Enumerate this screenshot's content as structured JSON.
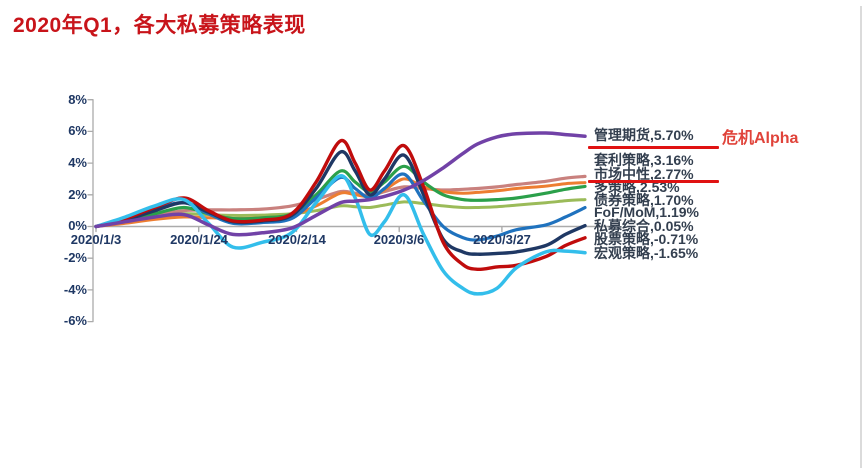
{
  "page": {
    "title": "2020年Q1，各大私募策略表现"
  },
  "annotation": {
    "text": "危机Alpha"
  },
  "colors": {
    "title_red": "#C8141A",
    "annotation_red": "#E0433A",
    "underline_red": "#E01212",
    "axis_text": "#1F3864",
    "legend_text": "#333F4F",
    "axis_line": "#ABABAB",
    "page_border": "#DBDBDB"
  },
  "legend": {
    "entries": [
      {
        "text": "管理期货,5.70%",
        "underlined": true
      },
      {
        "text": "套利策略,3.16%",
        "underlined": false
      },
      {
        "text": "市场中性,2.77%",
        "underlined": true
      },
      {
        "text": "多策略,2.53%",
        "underlined": false
      },
      {
        "text": "债券策略,1.70%",
        "underlined": false
      },
      {
        "text": "FoF/MoM,1.19%",
        "underlined": false
      },
      {
        "text": "私募综合,0.05%",
        "underlined": false
      },
      {
        "text": "股票策略,-0.71%",
        "underlined": false
      },
      {
        "text": "宏观策略,-1.65%",
        "underlined": false
      }
    ]
  },
  "chart_data": {
    "type": "line",
    "title": "2020年Q1，各大私募策略表现",
    "xlabel": "",
    "ylabel": "",
    "ylim": [
      -6,
      8
    ],
    "grid": "zero-line-only",
    "legend_position": "right",
    "x_tick_labels": [
      "2020/1/3",
      "2020/1/24",
      "2020/2/14",
      "2020/3/6",
      "2020/3/27"
    ],
    "x_tick_pos": [
      0,
      0.21,
      0.41,
      0.62,
      0.83
    ],
    "y_ticks": [
      "8%",
      "6%",
      "4%",
      "2%",
      "0%",
      "-2%",
      "-4%",
      "-6%"
    ],
    "y_tick_values": [
      8,
      6,
      4,
      2,
      0,
      -2,
      -4,
      -6
    ],
    "x_unit": "fraction of Q1 2020 (2020/1/3 → 2020/3/31)",
    "y_unit": "cumulative return %",
    "u": [
      0,
      0.06,
      0.12,
      0.18,
      0.23,
      0.28,
      0.34,
      0.4,
      0.45,
      0.5,
      0.53,
      0.56,
      0.59,
      0.63,
      0.67,
      0.71,
      0.75,
      0.78,
      0.82,
      0.86,
      0.92,
      0.96,
      1.0
    ],
    "series": [
      {
        "key": "bond",
        "name": "债券策略",
        "end_value": 1.7,
        "end_label": "1.70%",
        "color": "#9BBB59",
        "width": 3.0,
        "values": [
          0,
          0.3,
          0.6,
          0.8,
          0.75,
          0.7,
          0.72,
          0.8,
          1.0,
          1.3,
          1.25,
          1.2,
          1.35,
          1.55,
          1.45,
          1.3,
          1.2,
          1.2,
          1.25,
          1.35,
          1.5,
          1.62,
          1.7
        ]
      },
      {
        "key": "arbitrage",
        "name": "套利策略",
        "end_value": 3.16,
        "end_label": "3.16%",
        "color": "#C9817E",
        "width": 3.2,
        "values": [
          0,
          0.3,
          0.7,
          1.0,
          1.05,
          1.05,
          1.1,
          1.3,
          1.7,
          2.2,
          2.1,
          1.95,
          2.2,
          2.5,
          2.4,
          2.3,
          2.35,
          2.4,
          2.5,
          2.65,
          2.85,
          3.05,
          3.16
        ]
      },
      {
        "key": "market-neutral",
        "name": "市场中性",
        "end_value": 2.77,
        "end_label": "2.77%",
        "color": "#ED7D31",
        "width": 3.0,
        "values": [
          0,
          0.2,
          0.45,
          0.6,
          0.55,
          0.5,
          0.55,
          0.7,
          1.3,
          2.1,
          2.0,
          1.9,
          2.3,
          3.0,
          2.5,
          2.2,
          2.1,
          2.15,
          2.25,
          2.4,
          2.55,
          2.7,
          2.77
        ]
      },
      {
        "key": "multi-strategy",
        "name": "多策略",
        "end_value": 2.53,
        "end_label": "2.53%",
        "color": "#2BA04A",
        "width": 3.2,
        "values": [
          0,
          0.35,
          0.8,
          1.2,
          0.8,
          0.5,
          0.55,
          0.8,
          2.0,
          3.5,
          2.8,
          2.2,
          2.8,
          3.8,
          2.8,
          2.0,
          1.7,
          1.65,
          1.7,
          1.8,
          2.1,
          2.35,
          2.53
        ]
      },
      {
        "key": "fof-mom",
        "name": "FoF/MoM",
        "end_value": 1.19,
        "end_label": "1.19%",
        "color": "#1F72BE",
        "width": 3.2,
        "values": [
          0,
          0.5,
          1.1,
          1.5,
          0.8,
          0.2,
          0.25,
          0.5,
          1.8,
          3.1,
          2.4,
          1.8,
          2.4,
          3.3,
          1.6,
          0.0,
          -0.7,
          -0.85,
          -0.6,
          -0.2,
          0.1,
          0.6,
          1.19
        ]
      },
      {
        "key": "composite",
        "name": "私募综合",
        "end_value": 0.05,
        "end_label": "0.05%",
        "color": "#1F3864",
        "width": 3.4,
        "values": [
          0,
          0.4,
          1.0,
          1.5,
          0.9,
          0.3,
          0.35,
          0.7,
          2.4,
          4.7,
          3.5,
          2.0,
          3.0,
          4.5,
          2.0,
          -0.8,
          -1.6,
          -1.75,
          -1.7,
          -1.6,
          -1.2,
          -0.5,
          0.05
        ]
      },
      {
        "key": "equity",
        "name": "股票策略",
        "end_value": -0.71,
        "end_label": "-0.71%",
        "color": "#C00C0C",
        "width": 3.4,
        "values": [
          0,
          0.5,
          1.2,
          1.8,
          1.0,
          0.35,
          0.4,
          0.8,
          2.8,
          5.4,
          4.0,
          2.3,
          3.5,
          5.1,
          2.5,
          -1.0,
          -2.4,
          -2.7,
          -2.55,
          -2.45,
          -1.9,
          -1.2,
          -0.71
        ]
      },
      {
        "key": "macro",
        "name": "宏观策略",
        "end_value": -1.65,
        "end_label": "-1.65%",
        "color": "#33BEEB",
        "width": 3.5,
        "values": [
          0,
          0.6,
          1.3,
          1.7,
          0.2,
          -1.3,
          -1.0,
          -0.4,
          1.5,
          3.2,
          1.8,
          -0.5,
          0.3,
          2.0,
          -0.5,
          -2.8,
          -3.9,
          -4.25,
          -3.9,
          -2.6,
          -1.6,
          -1.55,
          -1.65
        ]
      },
      {
        "key": "managed-futures",
        "name": "管理期货",
        "end_value": 5.7,
        "end_label": "5.70%",
        "color": "#7142A7",
        "width": 3.5,
        "values": [
          0,
          0.3,
          0.6,
          0.75,
          0.1,
          -0.5,
          -0.4,
          -0.1,
          0.7,
          1.5,
          1.6,
          1.7,
          1.9,
          2.3,
          2.9,
          3.7,
          4.6,
          5.2,
          5.65,
          5.85,
          5.9,
          5.8,
          5.7
        ]
      }
    ],
    "highlighted_series": [
      "管理期货",
      "市场中性"
    ],
    "annotations": [
      {
        "text": "危机Alpha",
        "refers_to": "管理期货"
      }
    ]
  }
}
